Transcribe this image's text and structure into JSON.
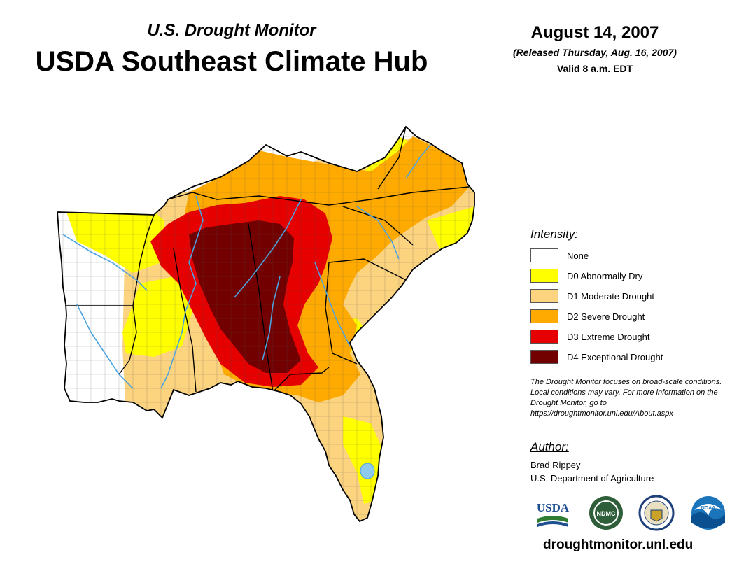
{
  "header": {
    "subtitle": "U.S. Drought Monitor",
    "title": "USDA Southeast Climate Hub",
    "date": "August 14, 2007",
    "released": "(Released Thursday, Aug. 16, 2007)",
    "valid": "Valid 8 a.m. EDT"
  },
  "legend": {
    "heading": "Intensity:",
    "items": [
      {
        "label": "None",
        "color": "#ffffff"
      },
      {
        "label": "D0 Abnormally Dry",
        "color": "#ffff00"
      },
      {
        "label": "D1 Moderate Drought",
        "color": "#fcd37f"
      },
      {
        "label": "D2 Severe Drought",
        "color": "#ffaa00"
      },
      {
        "label": "D3 Extreme Drought",
        "color": "#e60000"
      },
      {
        "label": "D4 Exceptional Drought",
        "color": "#730000"
      }
    ]
  },
  "note": "The Drought Monitor focuses on broad-scale conditions. Local conditions may vary. For more information on the Drought Monitor, go to https://droughtmonitor.unl.edu/About.aspx",
  "author": {
    "heading": "Author:",
    "name": "Brad Rippey",
    "org": "U.S. Department of Agriculture"
  },
  "logos": {
    "usda": "USDA",
    "ndmc": "NDMC",
    "noaa": "NOAA"
  },
  "website": "droughtmonitor.unl.edu",
  "colors": {
    "river": "#4aa3df",
    "border": "#000000",
    "county": "#555555"
  }
}
